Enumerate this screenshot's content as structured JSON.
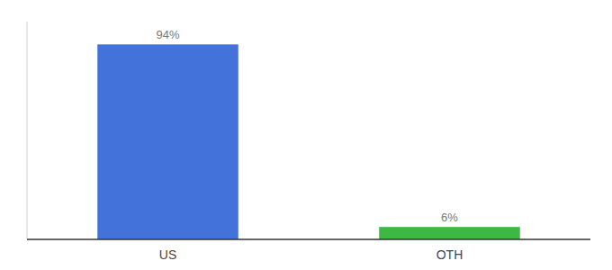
{
  "chart_data": {
    "type": "bar",
    "categories": [
      "US",
      "OTH"
    ],
    "values": [
      94,
      6
    ],
    "value_labels": [
      "94%",
      "6%"
    ],
    "colors": [
      "#4472db",
      "#3cb843"
    ],
    "ylim": [
      0,
      105
    ],
    "data_labels": true,
    "tick_labels": "x"
  }
}
